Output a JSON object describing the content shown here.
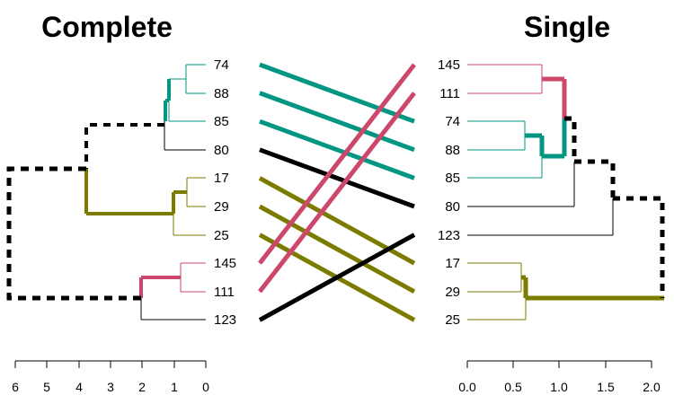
{
  "left": {
    "title": "Complete",
    "leaves": [
      "74",
      "88",
      "85",
      "80",
      "17",
      "29",
      "25",
      "145",
      "111",
      "123"
    ],
    "axis_ticks": [
      "6",
      "5",
      "4",
      "3",
      "2",
      "1",
      "0"
    ]
  },
  "right": {
    "title": "Single",
    "leaves": [
      "145",
      "111",
      "74",
      "88",
      "85",
      "80",
      "123",
      "17",
      "29",
      "25"
    ],
    "axis_ticks": [
      "0.0",
      "0.5",
      "1.0",
      "1.5",
      "2.0"
    ]
  },
  "colors": {
    "teal": "#009682",
    "pink": "#cc476b",
    "olive": "#7b7b00",
    "black": "#000000"
  },
  "connectors": [
    {
      "from": "74",
      "to": "74",
      "color": "teal"
    },
    {
      "from": "88",
      "to": "88",
      "color": "teal"
    },
    {
      "from": "85",
      "to": "85",
      "color": "teal"
    },
    {
      "from": "80",
      "to": "80",
      "color": "black"
    },
    {
      "from": "17",
      "to": "17",
      "color": "olive"
    },
    {
      "from": "29",
      "to": "29",
      "color": "olive"
    },
    {
      "from": "25",
      "to": "25",
      "color": "olive"
    },
    {
      "from": "145",
      "to": "145",
      "color": "pink"
    },
    {
      "from": "111",
      "to": "111",
      "color": "pink"
    },
    {
      "from": "123",
      "to": "123",
      "color": "black"
    }
  ]
}
